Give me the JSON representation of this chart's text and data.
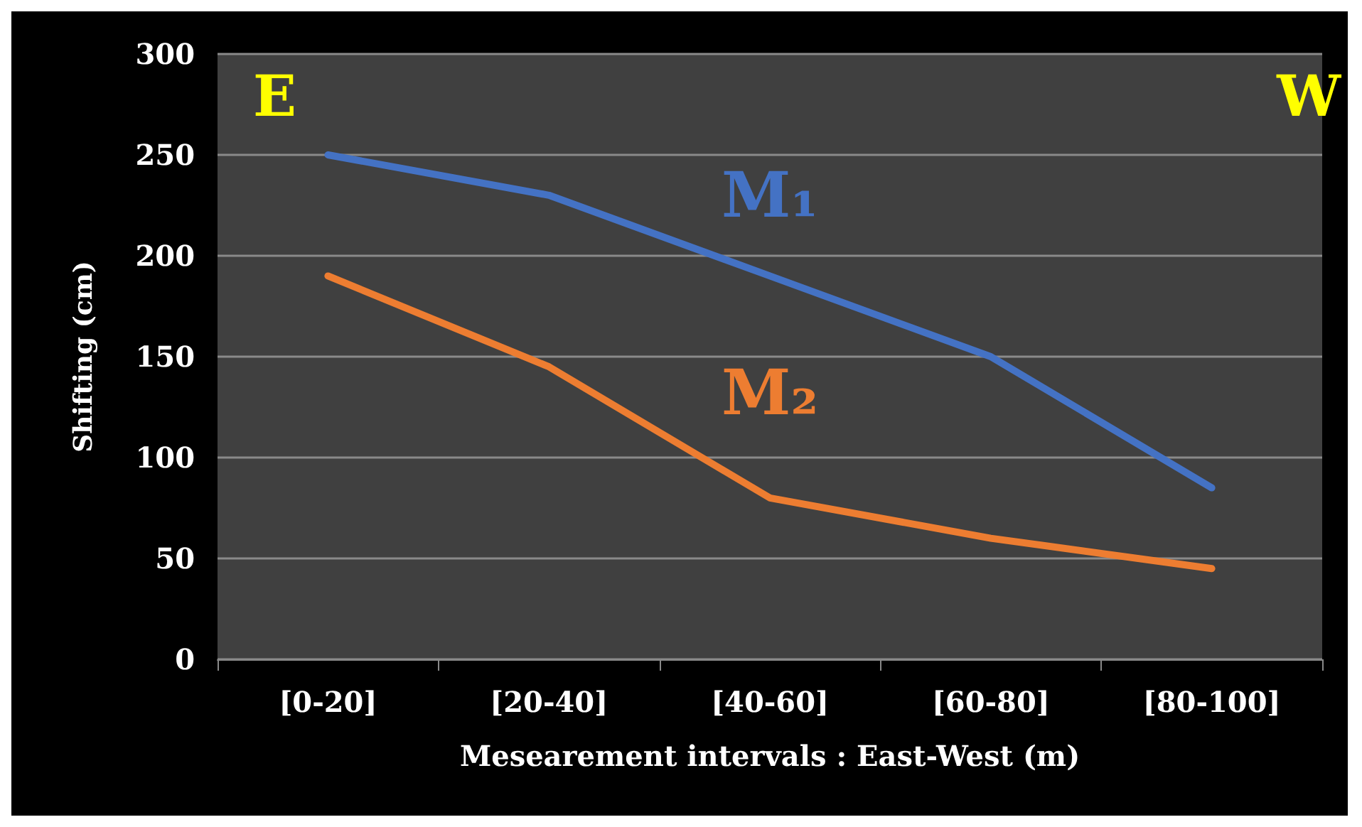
{
  "chart_data": {
    "type": "line",
    "xlabel": "Mesearement intervals : East-West (m)",
    "ylabel": "Shifting (cm)",
    "categories": [
      "[0-20]",
      "[20-40]",
      "[40-60]",
      "[60-80]",
      "[80-100]"
    ],
    "series": [
      {
        "name": "M₁",
        "color": "#4472c4",
        "values": [
          250,
          230,
          190,
          150,
          85
        ]
      },
      {
        "name": "M₂",
        "color": "#ed7d31",
        "values": [
          190,
          145,
          80,
          60,
          45
        ]
      }
    ],
    "ylim": [
      0,
      300
    ],
    "yticks": [
      0,
      50,
      100,
      150,
      200,
      250,
      300
    ],
    "grid": "y",
    "legend": false,
    "marker": "none",
    "line_style": "solid",
    "annotations": [
      "E",
      "W"
    ]
  }
}
